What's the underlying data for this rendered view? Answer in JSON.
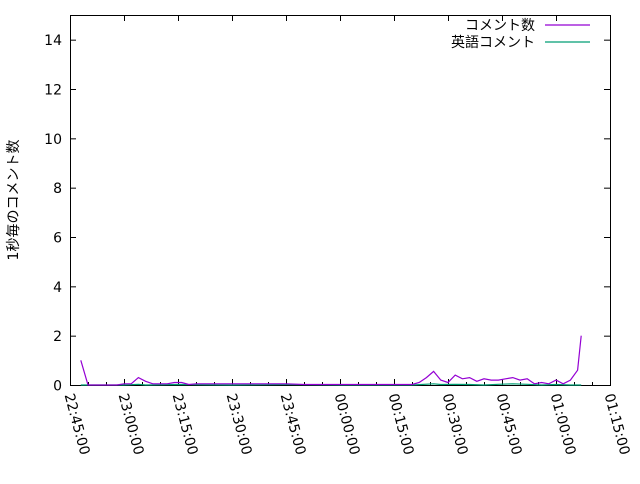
{
  "chart_data": {
    "type": "line",
    "title": "",
    "xlabel": "",
    "ylabel": "1秒毎のコメント数",
    "xlim": [
      "22:45:00",
      "01:15:00"
    ],
    "ylim": [
      0,
      15
    ],
    "x_ticks": [
      "22:45:00",
      "23:00:00",
      "23:15:00",
      "23:30:00",
      "23:45:00",
      "00:00:00",
      "00:15:00",
      "00:30:00",
      "00:45:00",
      "01:00:00",
      "01:15:00"
    ],
    "y_ticks": [
      "0",
      "2",
      "4",
      "6",
      "8",
      "10",
      "12",
      "14"
    ],
    "grid": false,
    "legend_position": "top-right",
    "series": [
      {
        "name": "コメント数",
        "color": "#9400d3",
        "x": [
          "22:48",
          "22:50",
          "22:58",
          "23:00",
          "23:02",
          "23:04",
          "23:06",
          "23:08",
          "23:10",
          "23:12",
          "23:14",
          "23:16",
          "23:18",
          "23:20",
          "23:25",
          "23:30",
          "23:35",
          "23:40",
          "23:45",
          "23:50",
          "23:55",
          "00:00",
          "00:05",
          "00:10",
          "00:15",
          "00:20",
          "00:22",
          "00:24",
          "00:26",
          "00:28",
          "00:30",
          "00:32",
          "00:34",
          "00:36",
          "00:38",
          "00:40",
          "00:42",
          "00:44",
          "00:46",
          "00:48",
          "00:50",
          "00:52",
          "00:54",
          "00:56",
          "00:58",
          "01:00",
          "01:02",
          "01:04",
          "01:06",
          "01:07"
        ],
        "y": [
          1,
          0,
          0,
          0.05,
          0.05,
          0.3,
          0.15,
          0.05,
          0.05,
          0.05,
          0.1,
          0.1,
          0.02,
          0.05,
          0.05,
          0.05,
          0.05,
          0.05,
          0.05,
          0.02,
          0.02,
          0.02,
          0.02,
          0.02,
          0.02,
          0.02,
          0.1,
          0.3,
          0.55,
          0.2,
          0.1,
          0.4,
          0.25,
          0.3,
          0.15,
          0.25,
          0.2,
          0.2,
          0.25,
          0.3,
          0.2,
          0.25,
          0.05,
          0.1,
          0.05,
          0.2,
          0.05,
          0.2,
          0.6,
          2
        ]
      },
      {
        "name": "英語コメント",
        "color": "#009e73",
        "x": [
          "22:48",
          "22:50",
          "23:00",
          "23:04",
          "23:06",
          "23:15",
          "23:30",
          "23:45",
          "00:00",
          "00:15",
          "00:20",
          "00:26",
          "00:28",
          "00:32",
          "00:36",
          "00:40",
          "00:44",
          "00:48",
          "00:52",
          "00:56",
          "01:00",
          "01:04",
          "01:07"
        ],
        "y": [
          0,
          0,
          0,
          0.03,
          0,
          0.02,
          0,
          0.02,
          0,
          0,
          0,
          0.05,
          0.02,
          0.03,
          0.02,
          0,
          0.03,
          0.05,
          0.03,
          0,
          0.02,
          0,
          0
        ]
      }
    ]
  }
}
